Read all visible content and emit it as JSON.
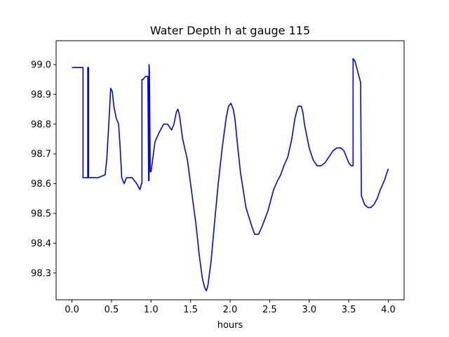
{
  "chart_data": {
    "type": "line",
    "title": "Water Depth h at gauge 115",
    "xlabel": "hours",
    "ylabel": "",
    "xlim": [
      -0.2,
      4.2
    ],
    "ylim": [
      98.21,
      99.08
    ],
    "xticks": [
      0.0,
      0.5,
      1.0,
      1.5,
      2.0,
      2.5,
      3.0,
      3.5,
      4.0
    ],
    "xtick_labels": [
      "0.0",
      "0.5",
      "1.0",
      "1.5",
      "2.0",
      "2.5",
      "3.0",
      "3.5",
      "4.0"
    ],
    "yticks": [
      98.3,
      98.4,
      98.5,
      98.6,
      98.7,
      98.8,
      98.9,
      99.0
    ],
    "ytick_labels": [
      "98.3",
      "98.4",
      "98.5",
      "98.6",
      "98.7",
      "98.8",
      "98.9",
      "99.0"
    ],
    "grid": false,
    "legend": "none",
    "series": [
      {
        "color": "#0000ff",
        "x": [
          0.0,
          0.14,
          0.14,
          0.2,
          0.2,
          0.21,
          0.21,
          0.33,
          0.42,
          0.44,
          0.47,
          0.49,
          0.51,
          0.53,
          0.56,
          0.59,
          0.61,
          0.63,
          0.66,
          0.69,
          0.72,
          0.76,
          0.82,
          0.86,
          0.88,
          0.885,
          0.885,
          0.9,
          0.93,
          0.96,
          0.97,
          0.975,
          0.975,
          0.98,
          0.99,
          1.0,
          1.05,
          1.1,
          1.16,
          1.21,
          1.26,
          1.29,
          1.32,
          1.34,
          1.36,
          1.4,
          1.46,
          1.52,
          1.57,
          1.61,
          1.65,
          1.68,
          1.7,
          1.72,
          1.76,
          1.8,
          1.85,
          1.9,
          1.95,
          1.98,
          2.01,
          2.04,
          2.06,
          2.09,
          2.13,
          2.2,
          2.27,
          2.31,
          2.34,
          2.36,
          2.41,
          2.48,
          2.55,
          2.6,
          2.64,
          2.68,
          2.73,
          2.78,
          2.82,
          2.86,
          2.9,
          2.92,
          2.94,
          2.97,
          3.0,
          3.05,
          3.1,
          3.15,
          3.2,
          3.25,
          3.3,
          3.35,
          3.4,
          3.44,
          3.47,
          3.5,
          3.53,
          3.555,
          3.555,
          3.58,
          3.62,
          3.65,
          3.65,
          3.66,
          3.7,
          3.74,
          3.78,
          3.82,
          3.86,
          3.9,
          3.95,
          4.0
        ],
        "y": [
          98.99,
          98.99,
          98.62,
          98.62,
          98.99,
          98.99,
          98.62,
          98.62,
          98.63,
          98.68,
          98.82,
          98.92,
          98.91,
          98.86,
          98.82,
          98.8,
          98.72,
          98.62,
          98.6,
          98.62,
          98.62,
          98.62,
          98.6,
          98.58,
          98.6,
          98.6,
          98.95,
          98.95,
          98.96,
          98.96,
          98.61,
          98.61,
          99.0,
          98.98,
          98.64,
          98.64,
          98.74,
          98.77,
          98.8,
          98.8,
          98.78,
          98.8,
          98.84,
          98.85,
          98.83,
          98.75,
          98.68,
          98.56,
          98.46,
          98.36,
          98.28,
          98.25,
          98.24,
          98.26,
          98.34,
          98.46,
          98.6,
          98.72,
          98.82,
          98.86,
          98.87,
          98.85,
          98.82,
          98.74,
          98.64,
          98.52,
          98.46,
          98.43,
          98.43,
          98.43,
          98.46,
          98.51,
          98.58,
          98.61,
          98.63,
          98.66,
          98.69,
          98.75,
          98.82,
          98.86,
          98.86,
          98.84,
          98.8,
          98.76,
          98.72,
          98.68,
          98.66,
          98.66,
          98.67,
          98.69,
          98.71,
          98.72,
          98.72,
          98.71,
          98.69,
          98.67,
          98.66,
          98.66,
          99.02,
          99.01,
          98.97,
          98.94,
          98.94,
          98.56,
          98.53,
          98.52,
          98.52,
          98.53,
          98.55,
          98.58,
          98.61,
          98.65
        ]
      }
    ]
  }
}
